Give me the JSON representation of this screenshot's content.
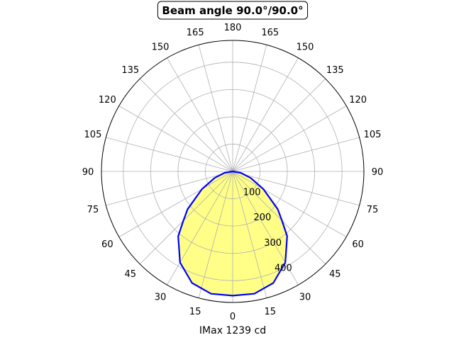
{
  "chart_data": {
    "type": "polar-line",
    "title": "Beam angle 90.0°/90.0°",
    "xlabel": "IMax 1239 cd",
    "angle_tick_labels": [
      "0",
      "15",
      "30",
      "45",
      "60",
      "75",
      "90",
      "105",
      "120",
      "135",
      "150",
      "165",
      "180",
      "165",
      "150",
      "135",
      "120",
      "105",
      "90",
      "75",
      "60",
      "45",
      "30",
      "15"
    ],
    "radial_ticks": [
      100,
      200,
      300,
      400
    ],
    "rlim": [
      0,
      480
    ],
    "grid": true,
    "series": [
      {
        "angles_deg": [
          -90,
          -80,
          -70,
          -60,
          -50,
          -45,
          -40,
          -30,
          -20,
          -10,
          0,
          10,
          20,
          30,
          40,
          45,
          50,
          60,
          70,
          80,
          90
        ],
        "values": [
          0,
          30,
          70,
          130,
          215,
          255,
          310,
          385,
          435,
          455,
          455,
          455,
          435,
          385,
          310,
          255,
          215,
          130,
          70,
          30,
          0
        ],
        "line_color": "#0000ff",
        "fill_color": "#ffff88"
      }
    ]
  }
}
